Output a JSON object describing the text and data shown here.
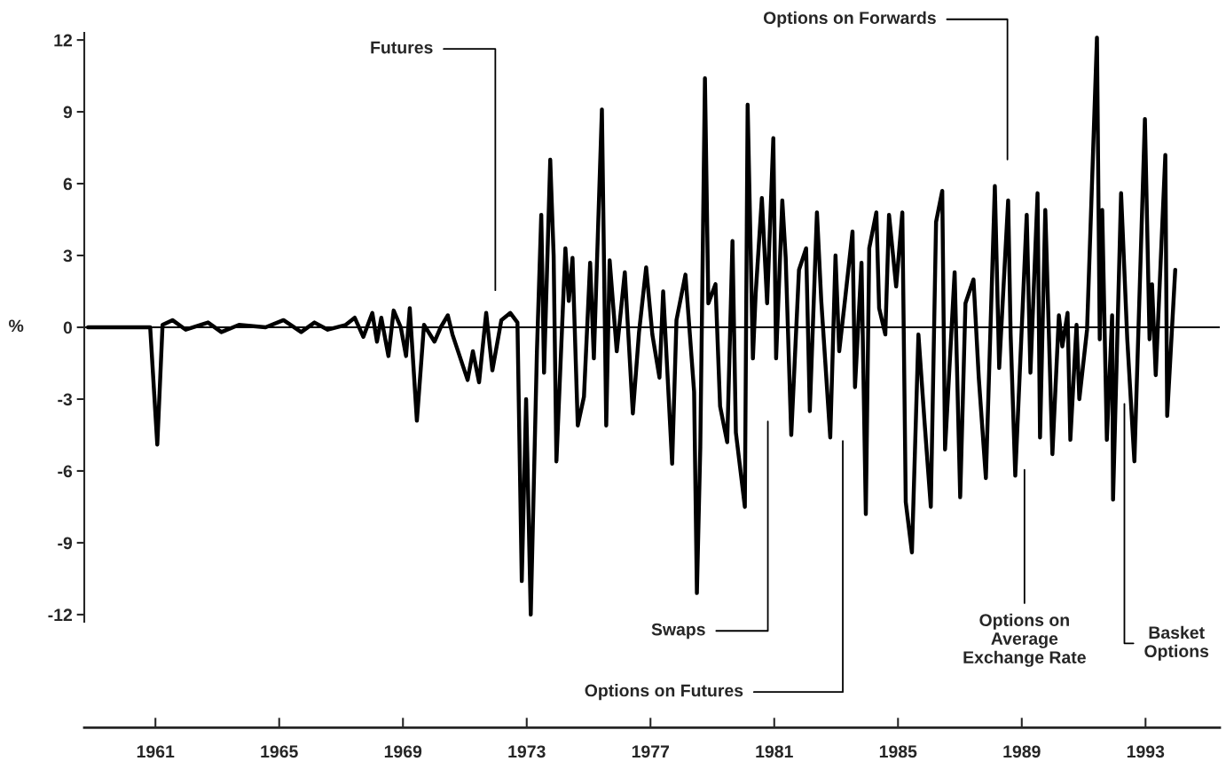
{
  "chart_data": {
    "type": "line",
    "ylabel": "%",
    "xlim": [
      1958.7,
      1995.4
    ],
    "ylim": [
      -12.3,
      12.3
    ],
    "yticks": [
      -12,
      -9,
      -6,
      -3,
      0,
      3,
      6,
      9,
      12
    ],
    "xticks": [
      1961,
      1965,
      1969,
      1973,
      1977,
      1981,
      1985,
      1989,
      1993
    ],
    "grid": false,
    "legend": false,
    "line_style": "solid",
    "marker": "none",
    "ref_lines": [
      {
        "axis": "y",
        "value": 0,
        "color": "#000000"
      }
    ],
    "annotations": [
      "Futures",
      "Options on Forwards",
      "Swaps",
      "Options on Futures",
      "Options on\nAverage\nExchange Rate",
      "Basket\nOptions"
    ],
    "series": [
      {
        "color": "#000000",
        "x": [
          1958.82,
          1960.83,
          1961.06,
          1961.23,
          1961.55,
          1961.98,
          1962.7,
          1963.13,
          1963.7,
          1964.56,
          1965.14,
          1965.71,
          1966.14,
          1966.57,
          1967.15,
          1967.44,
          1967.72,
          1968.01,
          1968.16,
          1968.3,
          1968.53,
          1968.7,
          1968.93,
          1969.1,
          1969.22,
          1969.45,
          1969.68,
          1970.02,
          1970.22,
          1970.45,
          1970.6,
          1971.09,
          1971.26,
          1971.46,
          1971.69,
          1971.89,
          1972.18,
          1972.47,
          1972.7,
          1972.84,
          1972.98,
          1973.13,
          1973.33,
          1973.47,
          1973.56,
          1973.76,
          1973.87,
          1973.96,
          1974.25,
          1974.36,
          1974.48,
          1974.65,
          1974.85,
          1975.05,
          1975.17,
          1975.43,
          1975.57,
          1975.68,
          1975.91,
          1976.17,
          1976.43,
          1976.63,
          1976.86,
          1977.06,
          1977.29,
          1977.41,
          1977.7,
          1977.84,
          1978.13,
          1978.41,
          1978.5,
          1978.61,
          1978.76,
          1978.87,
          1979.1,
          1979.25,
          1979.48,
          1979.65,
          1979.76,
          1980.05,
          1980.14,
          1980.31,
          1980.4,
          1980.6,
          1980.77,
          1980.97,
          1981.06,
          1981.26,
          1981.37,
          1981.55,
          1981.8,
          1982.03,
          1982.15,
          1982.38,
          1982.52,
          1982.81,
          1982.98,
          1983.1,
          1983.3,
          1983.53,
          1983.61,
          1983.82,
          1983.96,
          1984.07,
          1984.3,
          1984.39,
          1984.59,
          1984.71,
          1984.94,
          1985.14,
          1985.25,
          1985.45,
          1985.66,
          1985.86,
          1986.06,
          1986.23,
          1986.43,
          1986.52,
          1986.83,
          1987.01,
          1987.18,
          1987.44,
          1987.61,
          1987.84,
          1988.13,
          1988.27,
          1988.56,
          1988.64,
          1988.79,
          1989.16,
          1989.28,
          1989.51,
          1989.59,
          1989.76,
          1989.99,
          1990.2,
          1990.31,
          1990.48,
          1990.57,
          1990.77,
          1990.86,
          1991.11,
          1991.43,
          1991.52,
          1991.6,
          1991.75,
          1991.92,
          1991.95,
          1992.21,
          1992.41,
          1992.64,
          1992.98,
          1993.13,
          1993.21,
          1993.33,
          1993.64,
          1993.7,
          1993.96
        ],
        "values": [
          0,
          0,
          -4.9,
          0.1,
          0.3,
          -0.1,
          0.2,
          -0.2,
          0.1,
          0,
          0.3,
          -0.2,
          0.2,
          -0.1,
          0.1,
          0.4,
          -0.4,
          0.6,
          -0.6,
          0.4,
          -1.2,
          0.7,
          0,
          -1.2,
          0.8,
          -3.9,
          0.1,
          -0.6,
          0,
          0.5,
          -0.3,
          -2.2,
          -1.0,
          -2.3,
          0.6,
          -1.8,
          0.3,
          0.6,
          0.2,
          -10.6,
          -3.0,
          -12.0,
          -1.0,
          4.7,
          -1.9,
          7.0,
          3.0,
          -5.6,
          3.3,
          1.1,
          2.9,
          -4.1,
          -2.9,
          2.7,
          -1.3,
          9.1,
          -4.1,
          2.8,
          -1.0,
          2.3,
          -3.6,
          -0.2,
          2.5,
          -0.3,
          -2.1,
          1.5,
          -5.7,
          0.3,
          2.2,
          -2.7,
          -11.1,
          -5.0,
          10.4,
          1.0,
          1.8,
          -3.3,
          -4.8,
          3.6,
          -4.4,
          -7.5,
          9.3,
          -1.3,
          1.4,
          5.4,
          1.0,
          7.9,
          -1.3,
          5.3,
          2.9,
          -4.5,
          2.4,
          3.3,
          -3.5,
          4.8,
          1.1,
          -4.6,
          3.0,
          -1.0,
          1.3,
          4.0,
          -2.5,
          2.7,
          -7.8,
          3.3,
          4.8,
          0.8,
          -0.3,
          4.7,
          1.7,
          4.8,
          -7.3,
          -9.4,
          -0.3,
          -4.0,
          -7.5,
          4.4,
          5.7,
          -5.1,
          2.3,
          -7.1,
          1.0,
          2.0,
          -2.1,
          -6.3,
          5.9,
          -1.7,
          5.3,
          -0.3,
          -6.2,
          4.7,
          -1.9,
          5.6,
          -4.6,
          4.9,
          -5.3,
          0.5,
          -0.8,
          0.6,
          -4.7,
          0.1,
          -3.0,
          -0.1,
          12.1,
          -0.5,
          4.9,
          -4.7,
          0.5,
          -7.2,
          5.6,
          -0.5,
          -5.6,
          8.7,
          -0.5,
          1.8,
          -2.0,
          7.2,
          -3.7,
          2.4
        ]
      }
    ]
  }
}
